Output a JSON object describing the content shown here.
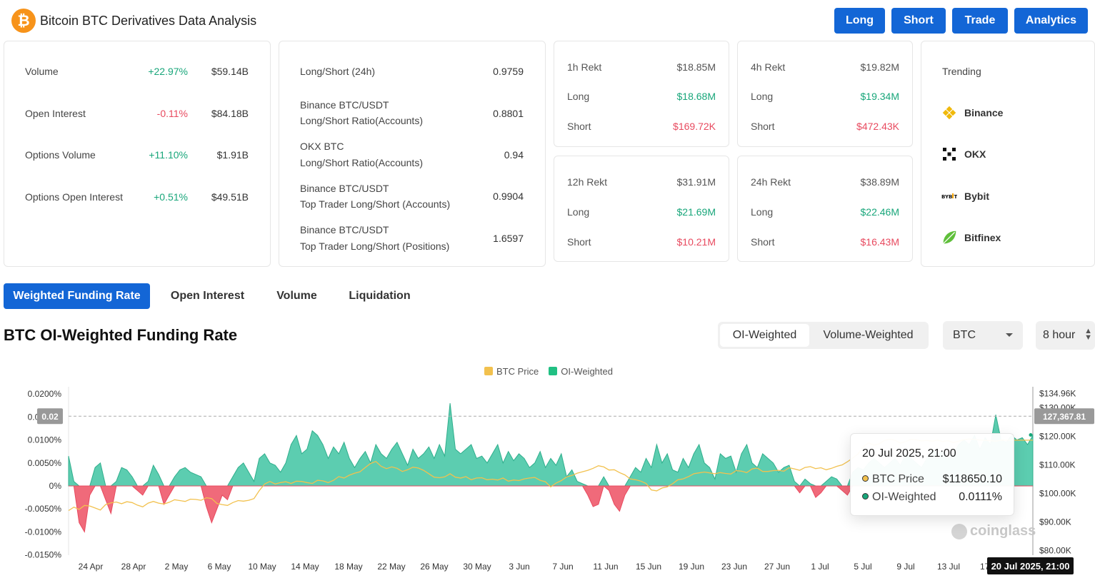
{
  "header": {
    "logo_glyph": "₿",
    "title": "Bitcoin BTC Derivatives Data Analysis",
    "buttons": [
      "Long",
      "Short",
      "Trade",
      "Analytics"
    ]
  },
  "stats_card": {
    "rows": [
      {
        "label": "Volume",
        "change": "+22.97%",
        "change_dir": "up",
        "value": "$59.14B"
      },
      {
        "label": "Open Interest",
        "change": "-0.11%",
        "change_dir": "down",
        "value": "$84.18B"
      },
      {
        "label": "Options Volume",
        "change": "+11.10%",
        "change_dir": "up",
        "value": "$1.91B"
      },
      {
        "label": "Options Open Interest",
        "change": "+0.51%",
        "change_dir": "up",
        "value": "$49.51B"
      }
    ]
  },
  "ratio_card": {
    "rows": [
      {
        "line1": "Long/Short (24h)",
        "line2": "",
        "value": "0.9759"
      },
      {
        "line1": "Binance BTC/USDT",
        "line2": "Long/Short Ratio(Accounts)",
        "value": "0.8801"
      },
      {
        "line1": "OKX BTC",
        "line2": "Long/Short Ratio(Accounts)",
        "value": "0.94"
      },
      {
        "line1": "Binance BTC/USDT",
        "line2": "Top Trader Long/Short (Accounts)",
        "value": "0.9904"
      },
      {
        "line1": "Binance BTC/USDT",
        "line2": "Top Trader Long/Short (Positions)",
        "value": "1.6597"
      }
    ]
  },
  "rekt": {
    "long_label": "Long",
    "short_label": "Short",
    "cards": [
      {
        "title": "1h Rekt",
        "total": "$18.85M",
        "long": "$18.68M",
        "short": "$169.72K"
      },
      {
        "title": "4h Rekt",
        "total": "$19.82M",
        "long": "$19.34M",
        "short": "$472.43K"
      },
      {
        "title": "12h Rekt",
        "total": "$31.91M",
        "long": "$21.69M",
        "short": "$10.21M"
      },
      {
        "title": "24h Rekt",
        "total": "$38.89M",
        "long": "$22.46M",
        "short": "$16.43M"
      }
    ]
  },
  "trending": {
    "title": "Trending",
    "items": [
      {
        "name": "Binance",
        "icon": "binance-icon"
      },
      {
        "name": "OKX",
        "icon": "okx-icon"
      },
      {
        "name": "Bybit",
        "icon": "bybit-icon"
      },
      {
        "name": "Bitfinex",
        "icon": "bitfinex-icon"
      }
    ]
  },
  "tabs": [
    "Weighted Funding Rate",
    "Open Interest",
    "Volume",
    "Liquidation"
  ],
  "active_tab": "Weighted Funding Rate",
  "section": {
    "title": "BTC OI-Weighted Funding Rate",
    "segments": [
      "OI-Weighted",
      "Volume-Weighted"
    ],
    "active_segment": "OI-Weighted",
    "coin_select": "BTC",
    "interval_select": "8 hour"
  },
  "colors": {
    "accent": "#1366d6",
    "positive": "#18a67a",
    "negative": "#e84a5f",
    "area_positive": "#5ccdb0",
    "area_negative": "#f06a7a",
    "price_line": "#f2c14e"
  },
  "tooltip": {
    "date": "20 Jul 2025, 21:00",
    "rows": [
      {
        "label": "BTC Price",
        "value": "$118650.10",
        "color": "#f2c14e"
      },
      {
        "label": "OI-Weighted",
        "value": "0.0111%",
        "color": "#18a67a"
      }
    ]
  },
  "crosshair": {
    "x_label": "20 Jul 2025, 21:00",
    "left_label": "0.02",
    "right_label": "127,367.81"
  },
  "watermark": "coinglass",
  "chart_data": {
    "type": "area",
    "series": [
      {
        "name": "BTC Price",
        "axis": "right",
        "color": "#f2c14e"
      },
      {
        "name": "OI-Weighted",
        "axis": "left",
        "color": "#5ccdb0"
      }
    ],
    "x_ticks": [
      "24 Apr",
      "28 Apr",
      "2 May",
      "6 May",
      "10 May",
      "14 May",
      "18 May",
      "22 May",
      "26 May",
      "30 May",
      "3 Jun",
      "7 Jun",
      "11 Jun",
      "15 Jun",
      "19 Jun",
      "23 Jun",
      "27 Jun",
      "1 Jul",
      "5 Jul",
      "9 Jul",
      "13 Jul",
      "17 Jul"
    ],
    "y_left_ticks": [
      "0.0200%",
      "0.0150%",
      "0.0100%",
      "0.0050%",
      "0%",
      "-0.0050%",
      "-0.0100%",
      "-0.0150%"
    ],
    "y_left_values": [
      0.02,
      0.015,
      0.01,
      0.005,
      0,
      -0.005,
      -0.01,
      -0.015
    ],
    "y_right_ticks": [
      "$134.96K",
      "$130.00K",
      "$120.00K",
      "$110.00K",
      "$100.00K",
      "$90.00K",
      "$80.00K"
    ],
    "ylim_left": [
      -0.015,
      0.02
    ],
    "ylim_right": [
      80000,
      134960
    ],
    "funding_rate": [
      0.0065,
      0.001,
      -0.008,
      -0.01,
      -0.002,
      0.004,
      0.005,
      -0.003,
      -0.006,
      0.001,
      0.004,
      0.0035,
      0.002,
      -0.001,
      -0.002,
      0.001,
      0.0045,
      0.0025,
      -0.004,
      -0.002,
      0.002,
      0.0035,
      0.004,
      0.003,
      0.0025,
      0.002,
      -0.0045,
      -0.008,
      -0.005,
      -0.002,
      -0.003,
      0.002,
      0.004,
      0.005,
      0.003,
      0.001,
      0.006,
      0.007,
      0.005,
      0.0045,
      0.003,
      0.005,
      0.009,
      0.011,
      0.007,
      0.008,
      0.012,
      0.011,
      0.009,
      0.006,
      0.0085,
      0.007,
      0.0095,
      0.006,
      0.004,
      0.006,
      0.0075,
      0.005,
      0.009,
      0.007,
      0.006,
      0.008,
      0.0095,
      0.007,
      0.0045,
      0.008,
      0.006,
      0.007,
      0.0085,
      0.006,
      0.009,
      0.0065,
      0.018,
      0.008,
      0.007,
      0.008,
      0.009,
      0.006,
      0.0065,
      0.005,
      0.007,
      0.009,
      0.005,
      0.0075,
      0.0055,
      0.007,
      0.006,
      0.004,
      0.005,
      0.0075,
      0.004,
      0.006,
      0.0045,
      0.007,
      0.002,
      0.0035,
      0.001,
      0.0005,
      -0.002,
      -0.0045,
      -0.004,
      0.002,
      -0.001,
      -0.004,
      -0.0055,
      -0.002,
      0.002,
      0.004,
      0.003,
      0.006,
      0.004,
      0.009,
      0.005,
      0.007,
      0.0035,
      0.003,
      0.006,
      0.004,
      0.007,
      0.009,
      0.005,
      0.004,
      0.0015,
      0.007,
      0.006,
      0.0065,
      0.003,
      0.007,
      0.009,
      0.005,
      0.004,
      0.007,
      0.006,
      0.005,
      0.003,
      0.004,
      0.0045,
      0.001,
      -0.0015,
      0.0015,
      0.0005,
      -0.0025,
      -0.0015,
      0.001,
      0.002,
      0.0015,
      -0.001,
      -0.002,
      0.003,
      0.004,
      0.0035,
      0.005,
      0.006,
      0.005,
      0.004,
      0.005,
      0.006,
      0.0045,
      0.007,
      0.006,
      0.005,
      0.004,
      0.006,
      0.008,
      0.007,
      0.0075,
      0.006,
      0.007,
      0.009,
      0.01,
      0.009,
      0.011,
      0.008,
      0.0105,
      0.009,
      0.0155,
      0.01,
      0.0095,
      0.011,
      0.01,
      0.0105,
      0.009,
      0.011
    ],
    "btc_price": [
      94000,
      95200,
      94400,
      95800,
      95600,
      94900,
      94200,
      96100,
      96700,
      97000,
      96400,
      97100,
      96800,
      95900,
      95300,
      96600,
      97200,
      96600,
      96300,
      96900,
      97800,
      97500,
      97200,
      98000,
      97900,
      97600,
      98500,
      98200,
      96500,
      96100,
      95800,
      96800,
      97500,
      97300,
      97600,
      98200,
      101000,
      103300,
      104200,
      103300,
      103800,
      104100,
      103500,
      104300,
      104200,
      103800,
      103500,
      104600,
      104400,
      103800,
      104600,
      105900,
      105400,
      106400,
      107100,
      107600,
      109100,
      110500,
      111200,
      109500,
      108700,
      109300,
      108800,
      107700,
      108300,
      109200,
      108900,
      108100,
      106900,
      105700,
      105500,
      105800,
      106900,
      105700,
      105400,
      105900,
      104800,
      105400,
      105500,
      104800,
      105000,
      104700,
      105400,
      104300,
      104700,
      104500,
      105100,
      105400,
      105600,
      104600,
      104100,
      102300,
      103600,
      104500,
      105800,
      106300,
      107100,
      107600,
      108100,
      108800,
      109700,
      109300,
      108200,
      108300,
      107300,
      106500,
      105100,
      104800,
      104300,
      103500,
      101200,
      100900,
      101900,
      102300,
      103400,
      104800,
      105100,
      105900,
      106900,
      107200,
      107500,
      107200,
      106900,
      107300,
      107000,
      106800,
      108000,
      107800,
      107300,
      108600,
      108900,
      107700,
      107700,
      108000,
      108100,
      107800,
      109000,
      108600,
      108100,
      109100,
      109400,
      108700,
      109000,
      108300,
      108800,
      109500,
      110000,
      111100,
      112400,
      113800,
      116400,
      117700,
      116900,
      117400,
      118600,
      119000,
      118600,
      117600,
      118200,
      119000,
      118800,
      118400,
      118600,
      118300,
      118700,
      118200,
      118500,
      117800,
      118300,
      118800,
      119100,
      118900,
      118700,
      118600,
      118500,
      118300,
      118700,
      118650,
      118650,
      118650,
      118650,
      118650,
      118650
    ]
  }
}
